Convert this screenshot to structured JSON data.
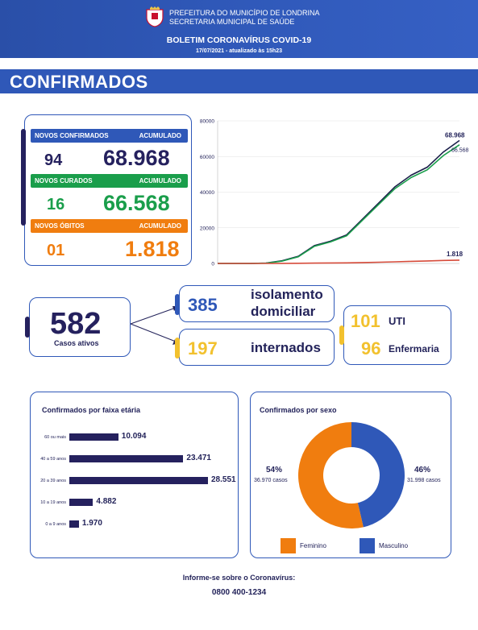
{
  "header": {
    "line1": "PREFEITURA DO MUNICÍPIO DE LONDRINA",
    "line2": "SECRETARIA MUNICIPAL DE SAÚDE",
    "title": "BOLETIM CORONAVÍRUS COVID-19",
    "date": "17/07/2021 - atualizado às 15h23"
  },
  "section_title": "CONFIRMADOS",
  "stats": {
    "confirmed": {
      "label": "NOVOS CONFIRMADOS",
      "acc_label": "ACUMULADO",
      "new": "94",
      "total": "68.968",
      "color": "#2f58b8"
    },
    "recovered": {
      "label": "NOVOS CURADOS",
      "acc_label": "ACUMULADO",
      "new": "16",
      "total": "66.568",
      "color": "#1a9e4b"
    },
    "deaths": {
      "label": "NOVOS ÓBITOS",
      "acc_label": "ACUMULADO",
      "new": "01",
      "total": "1.818",
      "color": "#f07d0f"
    }
  },
  "chart_data": {
    "type": "line",
    "ylim": [
      0,
      80000
    ],
    "yticks": [
      "80000",
      "60000",
      "40000",
      "20000",
      "0"
    ],
    "series": [
      {
        "name": "",
        "values": [
          0,
          0,
          0,
          200,
          1500,
          4000,
          10000,
          12500,
          16000,
          25000,
          34000,
          43000,
          49500,
          54000,
          62500,
          68968
        ],
        "end_label": "68.968"
      },
      {
        "name": "",
        "values": [
          0,
          0,
          0,
          150,
          1300,
          3700,
          9600,
          12100,
          15500,
          24400,
          33200,
          42000,
          48200,
          52500,
          60500,
          66568
        ],
        "end_label": "66.568"
      },
      {
        "name": "",
        "values": [
          0,
          0,
          0,
          5,
          40,
          90,
          190,
          260,
          330,
          490,
          680,
          900,
          1150,
          1400,
          1650,
          1818
        ],
        "end_label": "1.818"
      }
    ],
    "colors": [
      "#1b1f4a",
      "#1a9e4b",
      "#d64b3a"
    ]
  },
  "active": {
    "total": "582",
    "total_label": "Casos ativos",
    "isolation_value": "385",
    "isolation_label_1": "isolamento",
    "isolation_label_2": "domiciliar",
    "hospital_value": "197",
    "hospital_label": "internados",
    "uti_value": "101",
    "uti_label": "UTI",
    "ward_value": "96",
    "ward_label": "Enfermaria"
  },
  "age": {
    "title": "Confirmados por faixa etária",
    "rows": [
      {
        "label": "60 ou mais",
        "value": 10094,
        "value_text": "10.094"
      },
      {
        "label": "40 a 59 anos",
        "value": 23471,
        "value_text": "23.471"
      },
      {
        "label": "20 a 39 anos",
        "value": 28551,
        "value_text": "28.551"
      },
      {
        "label": "10 a 19 anos",
        "value": 4882,
        "value_text": "4.882"
      },
      {
        "label": "0 a 9 anos",
        "value": 1970,
        "value_text": "1.970"
      }
    ]
  },
  "sex": {
    "title": "Confirmados por sexo",
    "female_pct": "54%",
    "female_cases": "36.970 casos",
    "female_value": 36970,
    "male_pct": "46%",
    "male_cases": "31.998 casos",
    "male_value": 31998,
    "female_label": "Feminino",
    "male_label": "Masculino",
    "female_color": "#f07d0f",
    "male_color": "#2f58b8"
  },
  "footer": {
    "line1": "Informe-se sobre o Coronavírus:",
    "line2": "0800 400-1234"
  }
}
